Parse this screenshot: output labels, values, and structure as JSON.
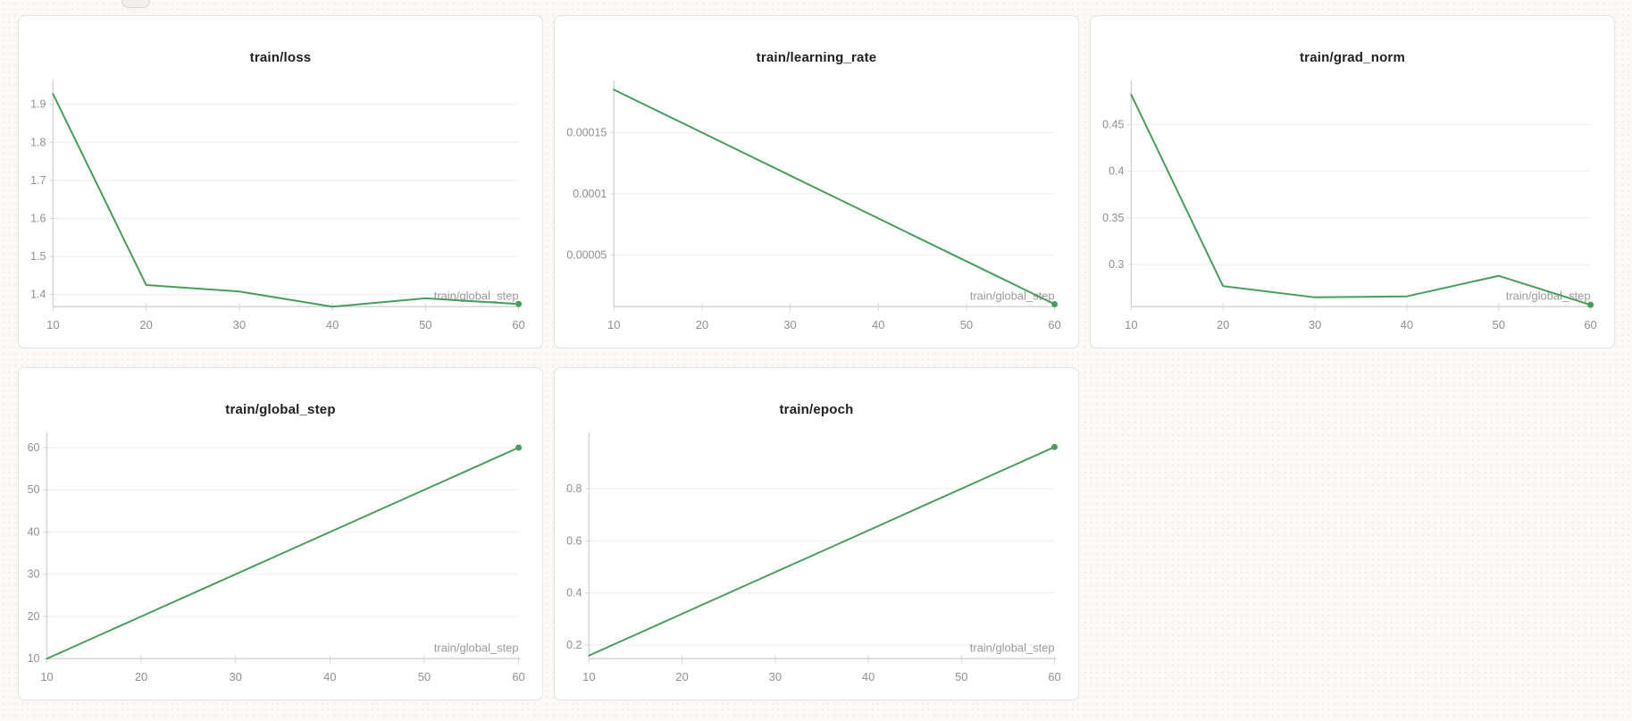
{
  "page": {
    "kind": "training-metrics-dashboard"
  },
  "theme": {
    "line_color": "#4a9c5d",
    "grid_color": "#ededed",
    "axis_color": "#d5d5d5",
    "tick_label_color": "#8f8f8f",
    "axis_label_color": "#9b9b9b",
    "title_color": "#212121",
    "card_background": "#ffffff",
    "page_background": "#faf9f6"
  },
  "chart_data": [
    {
      "type": "line",
      "title": "train/loss",
      "xlabel": "train/global_step",
      "x": [
        10,
        20,
        30,
        40,
        50,
        60
      ],
      "values": [
        1.927,
        1.425,
        1.408,
        1.368,
        1.39,
        1.375
      ],
      "x_tick_labels": [
        "10",
        "20",
        "30",
        "40",
        "50",
        "60"
      ],
      "y_tick_values": [
        1.4,
        1.5,
        1.6,
        1.7,
        1.8,
        1.9
      ],
      "y_tick_labels": [
        "1.4",
        "1.5",
        "1.6",
        "1.7",
        "1.8",
        "1.9"
      ],
      "xlim": [
        10,
        60
      ],
      "ylim": [
        1.368,
        1.945
      ],
      "grid": "horizontal",
      "legend": "none",
      "end_marker": true
    },
    {
      "type": "line",
      "title": "train/learning_rate",
      "xlabel": "train/global_step",
      "x": [
        10,
        20,
        30,
        40,
        50,
        60
      ],
      "values": [
        0.000185,
        0.00015,
        0.000115,
        8e-05,
        4.5e-05,
        1e-05
      ],
      "x_tick_labels": [
        "10",
        "20",
        "30",
        "40",
        "50",
        "60"
      ],
      "y_tick_values": [
        5e-05,
        0.0001,
        0.00015
      ],
      "y_tick_labels": [
        "0.00005",
        "0.0001",
        "0.00015"
      ],
      "xlim": [
        10,
        60
      ],
      "ylim": [
        8e-06,
        0.000187
      ],
      "grid": "horizontal",
      "legend": "none",
      "end_marker": true
    },
    {
      "type": "line",
      "title": "train/grad_norm",
      "xlabel": "train/global_step",
      "x": [
        10,
        20,
        30,
        40,
        50,
        60
      ],
      "values": [
        0.482,
        0.277,
        0.265,
        0.266,
        0.288,
        0.257
      ],
      "x_tick_labels": [
        "10",
        "20",
        "30",
        "40",
        "50",
        "60"
      ],
      "y_tick_values": [
        0.3,
        0.35,
        0.4,
        0.45
      ],
      "y_tick_labels": [
        "0.3",
        "0.35",
        "0.4",
        "0.45"
      ],
      "xlim": [
        10,
        60
      ],
      "ylim": [
        0.255,
        0.49
      ],
      "grid": "horizontal",
      "legend": "none",
      "end_marker": true
    },
    {
      "type": "line",
      "title": "train/global_step",
      "xlabel": "train/global_step",
      "x": [
        10,
        20,
        30,
        40,
        50,
        60
      ],
      "values": [
        10,
        20,
        30,
        40,
        50,
        60
      ],
      "x_tick_labels": [
        "10",
        "20",
        "30",
        "40",
        "50",
        "60"
      ],
      "y_tick_values": [
        10,
        20,
        30,
        40,
        50,
        60
      ],
      "y_tick_labels": [
        "10",
        "20",
        "30",
        "40",
        "50",
        "60"
      ],
      "xlim": [
        10,
        60
      ],
      "ylim": [
        10,
        62
      ],
      "grid": "horizontal",
      "legend": "none",
      "end_marker": true
    },
    {
      "type": "line",
      "title": "train/epoch",
      "xlabel": "train/global_step",
      "x": [
        10,
        20,
        30,
        40,
        50,
        60
      ],
      "values": [
        0.16,
        0.32,
        0.48,
        0.64,
        0.8,
        0.96
      ],
      "x_tick_labels": [
        "10",
        "20",
        "30",
        "40",
        "50",
        "60"
      ],
      "y_tick_values": [
        0.2,
        0.4,
        0.6,
        0.8
      ],
      "y_tick_labels": [
        "0.2",
        "0.4",
        "0.6",
        "0.8"
      ],
      "xlim": [
        10,
        60
      ],
      "ylim": [
        0.148,
        0.99
      ],
      "grid": "horizontal",
      "legend": "none",
      "end_marker": true
    }
  ]
}
